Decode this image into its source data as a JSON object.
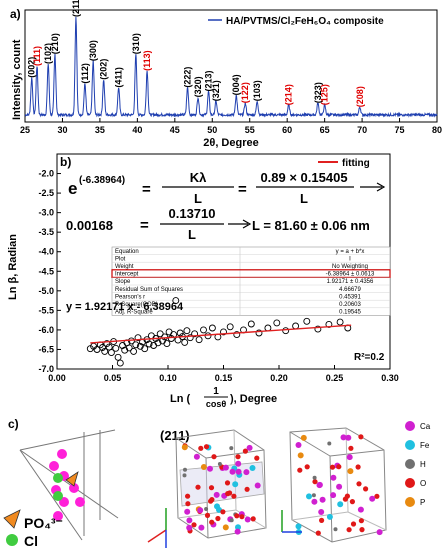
{
  "panel_a": {
    "label": "a)",
    "legend": "HA/PVTMS/Cl₂FeH₆O₄ composite",
    "ylabel": "Intensity, count",
    "xlabel": "2θ, Degree",
    "colors": {
      "line": "#1f3fb0",
      "black_label": "#000000",
      "red_label": "#e00000"
    },
    "chart_data": {
      "type": "line",
      "xlim": [
        25,
        80
      ],
      "x_ticks": [
        25,
        30,
        35,
        40,
        45,
        50,
        55,
        60,
        65,
        70,
        75,
        80
      ],
      "peaks": [
        {
          "x": 25.9,
          "h": 0.38,
          "label": "(002)",
          "color": "black"
        },
        {
          "x": 26.6,
          "h": 0.5,
          "label": "(111)",
          "color": "red"
        },
        {
          "x": 28.1,
          "h": 0.52,
          "label": "(102)",
          "color": "black"
        },
        {
          "x": 29.0,
          "h": 0.62,
          "label": "(210)",
          "color": "black"
        },
        {
          "x": 31.8,
          "h": 1.0,
          "label": "(211)",
          "color": "black"
        },
        {
          "x": 33.0,
          "h": 0.32,
          "label": "(112)",
          "color": "black"
        },
        {
          "x": 34.1,
          "h": 0.55,
          "label": "(300)",
          "color": "black"
        },
        {
          "x": 35.5,
          "h": 0.36,
          "label": "(202)",
          "color": "black"
        },
        {
          "x": 37.5,
          "h": 0.28,
          "label": "(411)",
          "color": "black"
        },
        {
          "x": 39.8,
          "h": 0.62,
          "label": "(310)",
          "color": "black"
        },
        {
          "x": 41.3,
          "h": 0.45,
          "label": "(113)",
          "color": "red"
        },
        {
          "x": 46.7,
          "h": 0.28,
          "label": "(222)",
          "color": "black"
        },
        {
          "x": 48.1,
          "h": 0.18,
          "label": "(320)",
          "color": "black"
        },
        {
          "x": 49.5,
          "h": 0.24,
          "label": "(213)",
          "color": "black"
        },
        {
          "x": 50.5,
          "h": 0.14,
          "label": "(321)",
          "color": "black"
        },
        {
          "x": 53.2,
          "h": 0.2,
          "label": "(004)",
          "color": "black"
        },
        {
          "x": 54.4,
          "h": 0.12,
          "label": "(122)",
          "color": "red"
        },
        {
          "x": 56.0,
          "h": 0.14,
          "label": "(103)",
          "color": "black"
        },
        {
          "x": 60.2,
          "h": 0.1,
          "label": "(214)",
          "color": "red"
        },
        {
          "x": 64.1,
          "h": 0.12,
          "label": "(323)",
          "color": "black"
        },
        {
          "x": 65.0,
          "h": 0.1,
          "label": "(125)",
          "color": "red"
        },
        {
          "x": 69.7,
          "h": 0.08,
          "label": "(208)",
          "color": "red"
        }
      ]
    }
  },
  "panel_b": {
    "label": "b)",
    "legend": "fitting",
    "ylabel": "Ln β, Radian",
    "xlabel_prefix": "Ln (",
    "xlabel_num": "1",
    "xlabel_den": "cosθ",
    "xlabel_suffix": "), Degree",
    "eq_exp": "(-6.38964)",
    "eq_e": "e",
    "eq_eq1": "=",
    "eq_k_num": "Kλ",
    "eq_l_1": "L",
    "eq_eq2": "=",
    "eq_num2": "0.89 × 0.15405",
    "eq_l_2": "L",
    "eq2_left": "0.00168",
    "eq2_eq": "=",
    "eq2_num": "0.13710",
    "eq2_den": "L",
    "eq2_result": "L = 81.60 ± 0.06 nm",
    "fit_equation": "y = 1.92171 x - 6.38964",
    "r2": "R²=0.2",
    "colors": {
      "fit": "#e02020",
      "highlight": "#cc0000"
    },
    "table": [
      [
        "Equation",
        "y = a + b*x"
      ],
      [
        "Plot",
        "I"
      ],
      [
        "Weight",
        "No Weighting"
      ],
      [
        "Intercept",
        "-6.38964 ± 0.0613"
      ],
      [
        "Slope",
        "1.92171 ± 0.4356"
      ],
      [
        "Residual Sum of Squares",
        "4.66679"
      ],
      [
        "Pearson's r",
        "0.45391"
      ],
      [
        "R-Square(COD)",
        "0.20603"
      ],
      [
        "Adj. R-Square",
        "0.19545"
      ]
    ],
    "chart_data": {
      "type": "scatter",
      "xlim": [
        0.0,
        0.3
      ],
      "ylim": [
        -7.0,
        -1.5
      ],
      "x_ticks": [
        "0.00",
        "0.05",
        "0.10",
        "0.15",
        "0.20",
        "0.25",
        "0.30"
      ],
      "y_ticks": [
        "-2.0",
        "-2.5",
        "-3.0",
        "-3.5",
        "-4.0",
        "-4.5",
        "-5.0",
        "-5.5",
        "-6.0",
        "-6.5",
        "-7.0"
      ],
      "fit": {
        "slope": 1.92171,
        "intercept": -6.38964,
        "x_range": [
          0.03,
          0.265
        ]
      },
      "points": [
        [
          0.03,
          -6.48
        ],
        [
          0.033,
          -6.42
        ],
        [
          0.036,
          -6.5
        ],
        [
          0.039,
          -6.38
        ],
        [
          0.041,
          -6.45
        ],
        [
          0.043,
          -6.55
        ],
        [
          0.045,
          -6.35
        ],
        [
          0.047,
          -6.44
        ],
        [
          0.049,
          -6.58
        ],
        [
          0.051,
          -6.3
        ],
        [
          0.053,
          -6.47
        ],
        [
          0.055,
          -6.7
        ],
        [
          0.057,
          -6.85
        ],
        [
          0.059,
          -6.4
        ],
        [
          0.061,
          -6.52
        ],
        [
          0.063,
          -6.33
        ],
        [
          0.065,
          -6.46
        ],
        [
          0.067,
          -6.28
        ],
        [
          0.069,
          -6.55
        ],
        [
          0.071,
          -6.38
        ],
        [
          0.073,
          -6.2
        ],
        [
          0.075,
          -6.42
        ],
        [
          0.077,
          -6.31
        ],
        [
          0.079,
          -6.48
        ],
        [
          0.081,
          -6.25
        ],
        [
          0.083,
          -6.36
        ],
        [
          0.085,
          -6.15
        ],
        [
          0.087,
          -6.4
        ],
        [
          0.089,
          -6.22
        ],
        [
          0.091,
          -6.33
        ],
        [
          0.093,
          -6.1
        ],
        [
          0.095,
          -6.28
        ],
        [
          0.097,
          -6.18
        ],
        [
          0.099,
          -6.35
        ],
        [
          0.101,
          -6.05
        ],
        [
          0.103,
          -6.22
        ],
        [
          0.105,
          -6.12
        ],
        [
          0.107,
          -5.25
        ],
        [
          0.109,
          -6.26
        ],
        [
          0.111,
          -6.08
        ],
        [
          0.113,
          -6.17
        ],
        [
          0.115,
          -6.32
        ],
        [
          0.117,
          -6.02
        ],
        [
          0.12,
          -6.2
        ],
        [
          0.124,
          -6.1
        ],
        [
          0.128,
          -6.25
        ],
        [
          0.132,
          -6.0
        ],
        [
          0.136,
          -6.15
        ],
        [
          0.14,
          -5.95
        ],
        [
          0.145,
          -6.18
        ],
        [
          0.15,
          -6.05
        ],
        [
          0.156,
          -5.92
        ],
        [
          0.162,
          -6.12
        ],
        [
          0.168,
          -6.0
        ],
        [
          0.175,
          -5.85
        ],
        [
          0.182,
          -6.08
        ],
        [
          0.19,
          -5.95
        ],
        [
          0.198,
          -5.82
        ],
        [
          0.206,
          -6.02
        ],
        [
          0.215,
          -5.9
        ],
        [
          0.225,
          -5.78
        ],
        [
          0.235,
          -5.98
        ],
        [
          0.245,
          -5.86
        ],
        [
          0.255,
          -5.8
        ],
        [
          0.262,
          -5.95
        ]
      ]
    }
  },
  "panel_c": {
    "label": "c)",
    "po4_label": "PO₄³⁻",
    "cl_label": "Cl",
    "plane_label": "(211)",
    "legend": [
      {
        "name": "Ca",
        "color": "#d020d0"
      },
      {
        "name": "Fe",
        "color": "#20c0e0"
      },
      {
        "name": "H",
        "color": "#707070"
      },
      {
        "name": "O",
        "color": "#e01818"
      },
      {
        "name": "P",
        "color": "#e88a10"
      }
    ]
  }
}
